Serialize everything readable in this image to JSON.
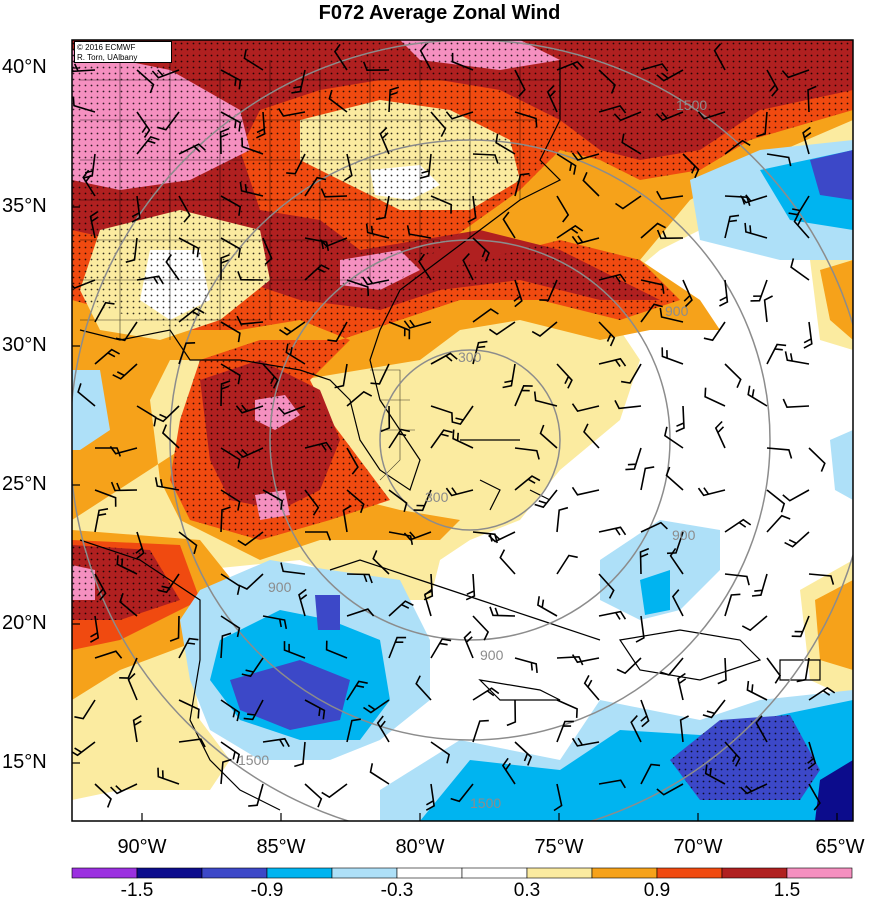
{
  "title": "F072 Average Zonal Wind",
  "credit": {
    "line1": "© 2016 ECMWF",
    "line2": "R. Torn, UAlbany"
  },
  "lat_labels": [
    "40°N",
    "35°N",
    "30°N",
    "25°N",
    "20°N",
    "15°N"
  ],
  "lon_labels": [
    "90°W",
    "85°W",
    "80°W",
    "75°W",
    "70°W",
    "65°W"
  ],
  "contour_labels": [
    "300",
    "300",
    "900",
    "900",
    "900",
    "900",
    "1500",
    "1500",
    "1500"
  ],
  "colorbar": {
    "labels": [
      "-1.5",
      "-0.9",
      "-0.3",
      "0.3",
      "0.9",
      "1.5"
    ],
    "colors": [
      "#9b30e0",
      "#0c0c8c",
      "#3c48c8",
      "#00b4f0",
      "#aee0f8",
      "#ffffff",
      "#ffffff",
      "#fbeba0",
      "#f6a21a",
      "#f04a10",
      "#b02020",
      "#f590c0"
    ]
  },
  "colors": {
    "pink": "#f590c0",
    "darkred": "#b02020",
    "red": "#f04a10",
    "orange": "#f6a21a",
    "yellow": "#fbeba0",
    "lightblue": "#aee0f8",
    "blue": "#00b4f0",
    "darkblue": "#3c48c8"
  }
}
